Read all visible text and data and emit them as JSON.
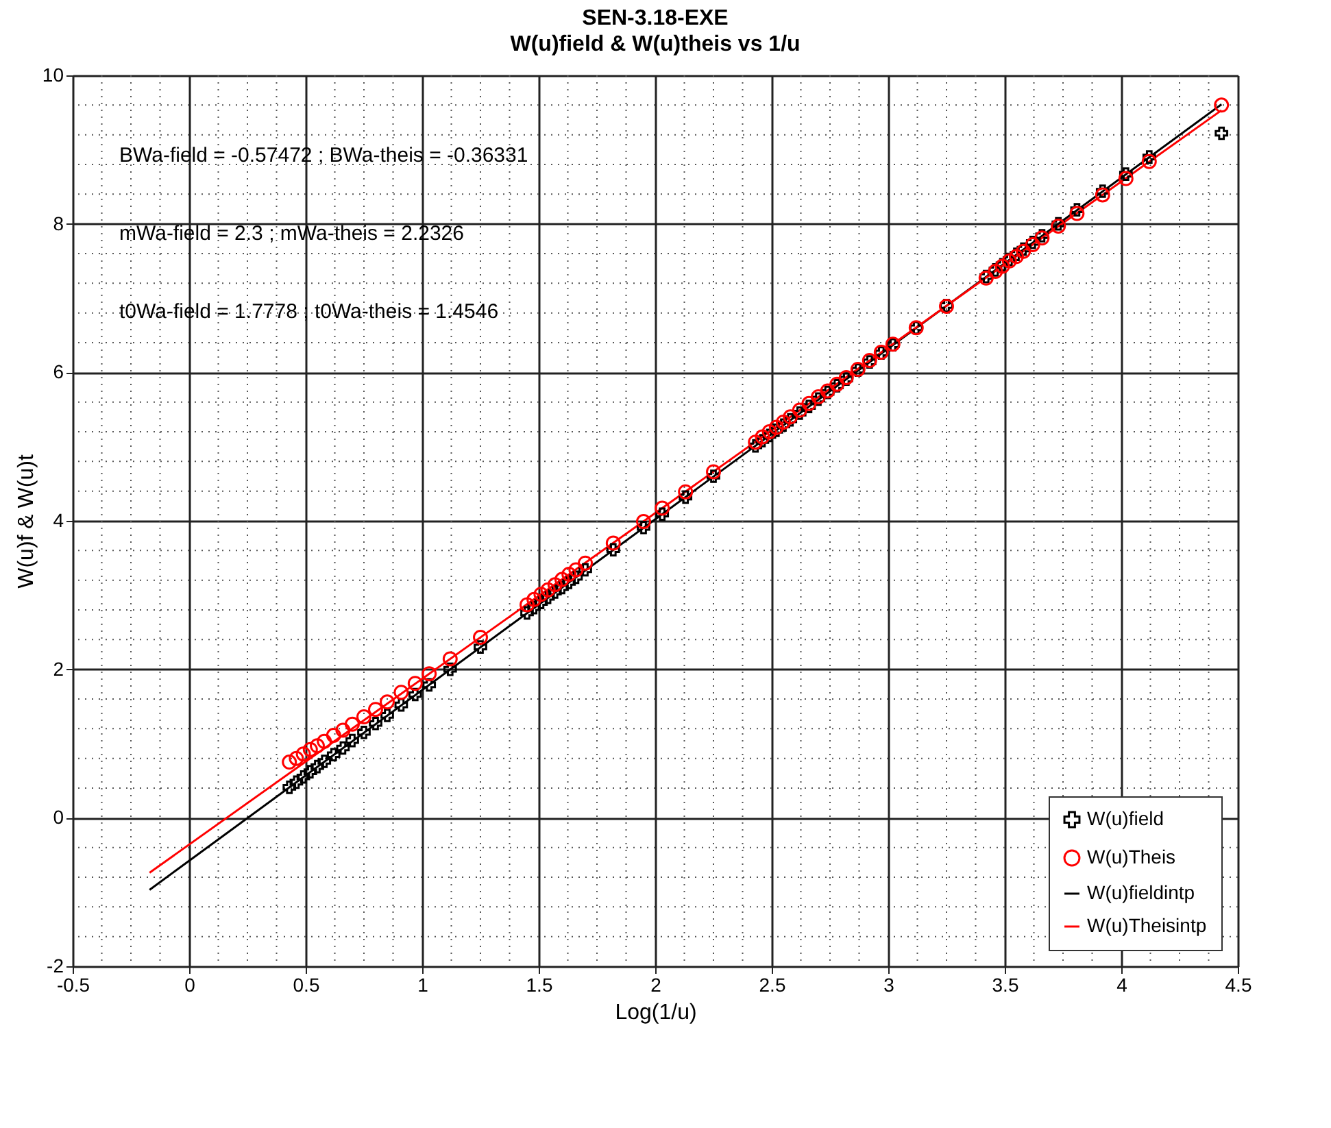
{
  "chart_data": {
    "type": "scatter",
    "title": "SEN-3.18-EXE",
    "subtitle": "W(u)field & W(u)theis vs 1/u",
    "xlabel": "Log(1/u)",
    "ylabel": "W(u)f & W(u)t",
    "xlim": [
      -0.5,
      4.5
    ],
    "xticks": [
      -0.5,
      0,
      0.5,
      1,
      1.5,
      2,
      2.5,
      3,
      3.5,
      4,
      4.5
    ],
    "ylim": [
      -2,
      10
    ],
    "yticks": [
      -2,
      0,
      2,
      4,
      6,
      8,
      10
    ],
    "grid": true,
    "legend": "bottom right",
    "annotations": [
      "BWa-field = -0.57472 ;  BWa-theis = -0.36331",
      "mWa-field = 2.3 ;  mWa-theis = 2.2326",
      "t0Wa-field = 1.7778 ;  t0Wa-theis = 1.4546"
    ],
    "series": [
      {
        "name": "W(u)field",
        "marker": "cross",
        "color": "#000000",
        "x": [
          0.43,
          0.46,
          0.49,
          0.52,
          0.55,
          0.58,
          0.62,
          0.66,
          0.7,
          0.75,
          0.8,
          0.85,
          0.91,
          0.97,
          1.03,
          1.12,
          1.25,
          1.45,
          1.48,
          1.51,
          1.54,
          1.57,
          1.6,
          1.63,
          1.66,
          1.7,
          1.82,
          1.95,
          2.03,
          2.13,
          2.25,
          2.43,
          2.46,
          2.49,
          2.52,
          2.55,
          2.58,
          2.62,
          2.66,
          2.7,
          2.74,
          2.78,
          2.82,
          2.87,
          2.92,
          2.97,
          3.02,
          3.12,
          3.25,
          3.42,
          3.46,
          3.49,
          3.52,
          3.55,
          3.58,
          3.62,
          3.66,
          3.73,
          3.81,
          3.92,
          4.02,
          4.12,
          4.43
        ],
        "values": [
          0.41,
          0.48,
          0.55,
          0.62,
          0.69,
          0.76,
          0.85,
          0.94,
          1.04,
          1.15,
          1.27,
          1.38,
          1.52,
          1.66,
          1.79,
          2.0,
          2.3,
          2.76,
          2.83,
          2.9,
          2.97,
          3.04,
          3.1,
          3.17,
          3.24,
          3.34,
          3.61,
          3.91,
          4.09,
          4.32,
          4.6,
          5.01,
          5.08,
          5.15,
          5.22,
          5.29,
          5.36,
          5.45,
          5.54,
          5.64,
          5.73,
          5.82,
          5.91,
          6.03,
          6.14,
          6.26,
          6.37,
          6.6,
          6.9,
          7.29,
          7.38,
          7.45,
          7.52,
          7.59,
          7.66,
          7.75,
          7.84,
          8.0,
          8.19,
          8.44,
          8.67,
          8.9,
          9.22
        ]
      },
      {
        "name": "W(u)Theis",
        "marker": "circle",
        "color": "#ff0000",
        "x": [
          0.43,
          0.46,
          0.49,
          0.52,
          0.55,
          0.58,
          0.62,
          0.66,
          0.7,
          0.75,
          0.8,
          0.85,
          0.91,
          0.97,
          1.03,
          1.12,
          1.25,
          1.45,
          1.48,
          1.51,
          1.54,
          1.57,
          1.6,
          1.63,
          1.66,
          1.7,
          1.82,
          1.95,
          2.03,
          2.13,
          2.25,
          2.43,
          2.46,
          2.49,
          2.52,
          2.55,
          2.58,
          2.62,
          2.66,
          2.7,
          2.74,
          2.78,
          2.82,
          2.87,
          2.92,
          2.97,
          3.02,
          3.12,
          3.25,
          3.42,
          3.46,
          3.49,
          3.52,
          3.55,
          3.58,
          3.62,
          3.66,
          3.73,
          3.81,
          3.92,
          4.02,
          4.12,
          4.43
        ],
        "values": [
          0.75,
          0.8,
          0.86,
          0.92,
          0.97,
          1.03,
          1.11,
          1.18,
          1.26,
          1.36,
          1.46,
          1.56,
          1.69,
          1.81,
          1.94,
          2.14,
          2.43,
          2.87,
          2.94,
          3.01,
          3.07,
          3.14,
          3.21,
          3.28,
          3.34,
          3.43,
          3.7,
          3.99,
          4.17,
          4.39,
          4.66,
          5.06,
          5.13,
          5.2,
          5.26,
          5.33,
          5.4,
          5.49,
          5.58,
          5.67,
          5.75,
          5.84,
          5.93,
          6.04,
          6.16,
          6.27,
          6.38,
          6.6,
          6.89,
          7.27,
          7.36,
          7.43,
          7.5,
          7.56,
          7.63,
          7.72,
          7.81,
          7.97,
          8.14,
          8.39,
          8.61,
          8.84,
          9.6
        ]
      },
      {
        "name": "W(u)fieldintp",
        "type": "line",
        "marker": "none",
        "line_style": "solid",
        "color": "#000000",
        "x": [
          -0.17,
          4.43
        ],
        "values": [
          -0.97,
          9.61
        ]
      },
      {
        "name": "W(u)Theisintp",
        "type": "line",
        "marker": "none",
        "line_style": "solid",
        "color": "#ff0000",
        "x": [
          -0.17,
          4.43
        ],
        "values": [
          -0.74,
          9.53
        ]
      }
    ]
  }
}
